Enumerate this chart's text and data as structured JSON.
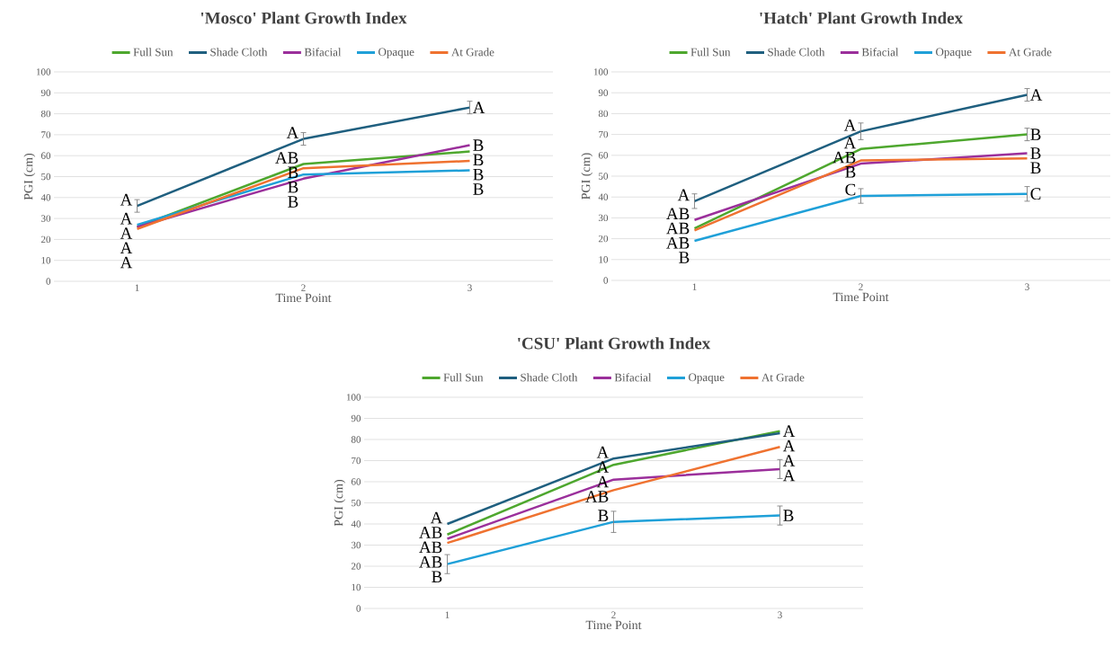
{
  "chart_data": [
    {
      "type": "line",
      "title": "'Mosco' Plant Growth Index",
      "xlabel": "Time Point",
      "ylabel": "PGI (cm)",
      "x": [
        1,
        2,
        3
      ],
      "xlim": [
        0.5,
        3.5
      ],
      "xticks": [
        1,
        2,
        3
      ],
      "ylim": [
        0,
        100
      ],
      "yticks": [
        0,
        10,
        20,
        30,
        40,
        50,
        60,
        70,
        80,
        90,
        100
      ],
      "grid": "y",
      "legend": "top",
      "series": [
        {
          "name": "Full Sun",
          "color": "#4ea72e",
          "values": [
            26,
            56,
            62
          ]
        },
        {
          "name": "Shade Cloth",
          "color": "#1f5f7f",
          "values": [
            36,
            68,
            83
          ],
          "errors": [
            3,
            3,
            3
          ]
        },
        {
          "name": "Bifacial",
          "color": "#9b2f9b",
          "values": [
            26,
            49,
            65
          ]
        },
        {
          "name": "Opaque",
          "color": "#1fa0d8",
          "values": [
            27,
            51,
            53
          ]
        },
        {
          "name": "At Grade",
          "color": "#ef7230",
          "values": [
            25,
            54,
            57.5
          ]
        }
      ],
      "annotations": [
        {
          "text": "A",
          "x": 1,
          "y": 36
        },
        {
          "text": "A",
          "x": 1,
          "y": 27
        },
        {
          "text": "A",
          "x": 1,
          "y": 26
        },
        {
          "text": "A",
          "x": 1,
          "y": 26
        },
        {
          "text": "A",
          "x": 1,
          "y": 25
        },
        {
          "text": "A",
          "x": 2,
          "y": 68
        },
        {
          "text": "AB",
          "x": 2,
          "y": 56
        },
        {
          "text": "B",
          "x": 2,
          "y": 54
        },
        {
          "text": "B",
          "x": 2,
          "y": 51
        },
        {
          "text": "B",
          "x": 2,
          "y": 49
        },
        {
          "text": "A",
          "x": 3,
          "y": 83
        },
        {
          "text": "B",
          "x": 3,
          "y": 65
        },
        {
          "text": "B",
          "x": 3,
          "y": 62
        },
        {
          "text": "B",
          "x": 3,
          "y": 57.5
        },
        {
          "text": "B",
          "x": 3,
          "y": 53
        }
      ]
    },
    {
      "type": "line",
      "title": "'Hatch' Plant Growth Index",
      "xlabel": "Time Point",
      "ylabel": "PGI (cm)",
      "x": [
        1,
        2,
        3
      ],
      "xlim": [
        0.5,
        3.5
      ],
      "xticks": [
        1,
        2,
        3
      ],
      "ylim": [
        0,
        100
      ],
      "yticks": [
        0,
        10,
        20,
        30,
        40,
        50,
        60,
        70,
        80,
        90,
        100
      ],
      "grid": "y",
      "legend": "top",
      "series": [
        {
          "name": "Full Sun",
          "color": "#4ea72e",
          "values": [
            25,
            63,
            70
          ],
          "errors": [
            null,
            null,
            3
          ]
        },
        {
          "name": "Shade Cloth",
          "color": "#1f5f7f",
          "values": [
            38,
            71.5,
            89
          ],
          "errors": [
            3.5,
            4,
            3
          ]
        },
        {
          "name": "Bifacial",
          "color": "#9b2f9b",
          "values": [
            29,
            56,
            61
          ]
        },
        {
          "name": "Opaque",
          "color": "#1fa0d8",
          "values": [
            19,
            40.5,
            41.5
          ],
          "errors": [
            null,
            3.5,
            3.5
          ]
        },
        {
          "name": "At Grade",
          "color": "#ef7230",
          "values": [
            24,
            57.5,
            58.5
          ]
        }
      ],
      "annotations": [
        {
          "text": "A",
          "x": 1,
          "y": 38
        },
        {
          "text": "AB",
          "x": 1,
          "y": 29
        },
        {
          "text": "AB",
          "x": 1,
          "y": 25
        },
        {
          "text": "AB",
          "x": 1,
          "y": 24
        },
        {
          "text": "B",
          "x": 1,
          "y": 19
        },
        {
          "text": "A",
          "x": 2,
          "y": 71.5
        },
        {
          "text": "A",
          "x": 2,
          "y": 63
        },
        {
          "text": "AB",
          "x": 2,
          "y": 57.5
        },
        {
          "text": "B",
          "x": 2,
          "y": 56
        },
        {
          "text": "C",
          "x": 2,
          "y": 40.5
        },
        {
          "text": "A",
          "x": 3,
          "y": 89
        },
        {
          "text": "B",
          "x": 3,
          "y": 70
        },
        {
          "text": "B",
          "x": 3,
          "y": 61
        },
        {
          "text": "B",
          "x": 3,
          "y": 58.5
        },
        {
          "text": "C",
          "x": 3,
          "y": 41.5
        }
      ]
    },
    {
      "type": "line",
      "title": "'CSU' Plant Growth Index",
      "xlabel": "Time Point",
      "ylabel": "PGI (cm)",
      "x": [
        1,
        2,
        3
      ],
      "xlim": [
        0.5,
        3.5
      ],
      "xticks": [
        1,
        2,
        3
      ],
      "ylim": [
        0,
        100
      ],
      "yticks": [
        0,
        10,
        20,
        30,
        40,
        50,
        60,
        70,
        80,
        90,
        100
      ],
      "grid": "y",
      "legend": "top",
      "series": [
        {
          "name": "Full Sun",
          "color": "#4ea72e",
          "values": [
            35,
            68,
            84
          ]
        },
        {
          "name": "Shade Cloth",
          "color": "#1f5f7f",
          "values": [
            40,
            71,
            83
          ]
        },
        {
          "name": "Bifacial",
          "color": "#9b2f9b",
          "values": [
            33,
            61,
            66
          ],
          "errors": [
            null,
            null,
            4.5
          ]
        },
        {
          "name": "Opaque",
          "color": "#1fa0d8",
          "values": [
            21,
            41,
            44
          ],
          "errors": [
            4.5,
            5,
            4.5
          ]
        },
        {
          "name": "At Grade",
          "color": "#ef7230",
          "values": [
            31,
            56,
            76.5
          ]
        }
      ],
      "annotations": [
        {
          "text": "A",
          "x": 1,
          "y": 40
        },
        {
          "text": "AB",
          "x": 1,
          "y": 35
        },
        {
          "text": "AB",
          "x": 1,
          "y": 33
        },
        {
          "text": "AB",
          "x": 1,
          "y": 31
        },
        {
          "text": "B",
          "x": 1,
          "y": 21
        },
        {
          "text": "A",
          "x": 2,
          "y": 71
        },
        {
          "text": "A",
          "x": 2,
          "y": 68
        },
        {
          "text": "A",
          "x": 2,
          "y": 61
        },
        {
          "text": "AB",
          "x": 2,
          "y": 56
        },
        {
          "text": "B",
          "x": 2,
          "y": 41
        },
        {
          "text": "A",
          "x": 3,
          "y": 84
        },
        {
          "text": "A",
          "x": 3,
          "y": 83
        },
        {
          "text": "A",
          "x": 3,
          "y": 76.5
        },
        {
          "text": "A",
          "x": 3,
          "y": 66
        },
        {
          "text": "B",
          "x": 3,
          "y": 44
        }
      ]
    }
  ]
}
